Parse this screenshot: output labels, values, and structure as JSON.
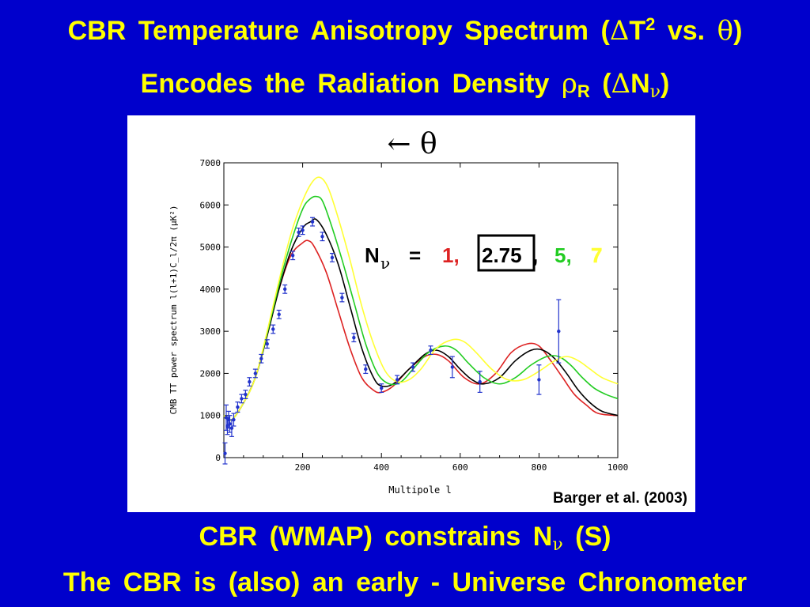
{
  "title": {
    "line1_prefix": "CBR  Temperature  Anisotropy  Spectrum  (",
    "line1_delta": "Δ",
    "line1_T": "T",
    "line1_sup": "2",
    "line1_vs": "  vs.  ",
    "line1_theta": "θ",
    "line1_close": ")",
    "line2_prefix": "Encodes  the  Radiation  Density  ",
    "line2_rho": "ρ",
    "line2_rsub": "R",
    "line2_open": "  (",
    "line2_delta": "Δ",
    "line2_N": "N",
    "line2_nu": "ν",
    "line2_close": ")"
  },
  "figure": {
    "arrow_label": "←  θ",
    "nnu_label": "N",
    "nnu_sub": "ν",
    "nnu_eq": "=",
    "nnu_values": [
      "1,",
      "2.75",
      ",",
      "5,",
      "7"
    ],
    "citation": "Barger et al. (2003)"
  },
  "bottom": {
    "line1_prefix": "CBR  (WMAP)  constrains  N",
    "line1_nu": "ν",
    "line1_suffix": " (S)",
    "line2": "The  CBR  is  (also)  an  early - Universe  Chronometer"
  },
  "colors": {
    "background": "#0000cc",
    "text": "#ffff00",
    "n1": "#dd2222",
    "n275": "#000000",
    "n5": "#22cc22",
    "n7": "#ffff33",
    "data": "#2233cc"
  },
  "chart_data": {
    "type": "line",
    "xlabel": "Multipole  l",
    "ylabel": "CMB  TT  power  spectrum    l(l+1)C_l/2π  (μK²)",
    "xlim": [
      0,
      1000
    ],
    "ylim": [
      0,
      7000
    ],
    "xticks": [
      200,
      400,
      600,
      800,
      1000
    ],
    "yticks": [
      0,
      1000,
      2000,
      3000,
      4000,
      5000,
      6000,
      7000
    ],
    "series": [
      {
        "name": "1",
        "color": "#dd2222",
        "x": [
          0,
          20,
          50,
          80,
          110,
          140,
          170,
          200,
          215,
          230,
          260,
          290,
          320,
          350,
          380,
          400,
          430,
          470,
          510,
          540,
          570,
          610,
          650,
          690,
          730,
          770,
          800,
          830,
          860,
          890,
          920,
          950,
          1000
        ],
        "y": [
          1000,
          900,
          1300,
          1900,
          2900,
          4000,
          4800,
          5100,
          5150,
          5000,
          4400,
          3500,
          2600,
          1900,
          1600,
          1550,
          1700,
          2100,
          2400,
          2450,
          2300,
          1900,
          1750,
          2000,
          2500,
          2700,
          2650,
          2300,
          1900,
          1500,
          1250,
          1050,
          1000
        ]
      },
      {
        "name": "2.75",
        "color": "#000000",
        "x": [
          0,
          20,
          50,
          80,
          110,
          140,
          170,
          200,
          220,
          235,
          260,
          290,
          320,
          350,
          380,
          400,
          430,
          470,
          510,
          540,
          570,
          600,
          630,
          660,
          700,
          740,
          780,
          810,
          840,
          870,
          900,
          930,
          960,
          1000
        ],
        "y": [
          1000,
          900,
          1300,
          1900,
          2900,
          4000,
          4900,
          5450,
          5600,
          5650,
          5300,
          4600,
          3600,
          2600,
          1900,
          1700,
          1750,
          2100,
          2450,
          2550,
          2400,
          2100,
          1850,
          1750,
          1900,
          2300,
          2550,
          2550,
          2350,
          2000,
          1600,
          1300,
          1100,
          1000
        ]
      },
      {
        "name": "5",
        "color": "#22cc22",
        "x": [
          0,
          20,
          50,
          80,
          110,
          140,
          170,
          200,
          220,
          235,
          250,
          270,
          300,
          330,
          360,
          390,
          420,
          450,
          480,
          520,
          560,
          590,
          620,
          660,
          700,
          740,
          780,
          820,
          850,
          880,
          910,
          940,
          970,
          1000
        ],
        "y": [
          1000,
          900,
          1300,
          1900,
          2950,
          4100,
          5100,
          5900,
          6150,
          6200,
          6100,
          5600,
          4700,
          3700,
          2700,
          2000,
          1750,
          1800,
          2100,
          2500,
          2650,
          2550,
          2250,
          1900,
          1750,
          1900,
          2200,
          2400,
          2400,
          2200,
          1900,
          1650,
          1500,
          1400
        ]
      },
      {
        "name": "7",
        "color": "#ffff33",
        "x": [
          0,
          20,
          50,
          80,
          110,
          140,
          170,
          200,
          225,
          245,
          265,
          290,
          320,
          350,
          380,
          410,
          440,
          470,
          500,
          540,
          580,
          610,
          640,
          680,
          720,
          760,
          800,
          840,
          870,
          900,
          930,
          960,
          1000
        ],
        "y": [
          1000,
          900,
          1300,
          1900,
          3000,
          4200,
          5300,
          6100,
          6550,
          6650,
          6400,
          5700,
          4700,
          3600,
          2700,
          2050,
          1800,
          1850,
          2100,
          2600,
          2800,
          2750,
          2500,
          2100,
          1850,
          1850,
          2050,
          2300,
          2400,
          2300,
          2100,
          1900,
          1750
        ]
      }
    ],
    "data_points": {
      "name": "WMAP",
      "color": "#2233cc",
      "x": [
        3,
        6,
        9,
        12,
        15,
        20,
        25,
        35,
        45,
        55,
        65,
        80,
        95,
        110,
        125,
        140,
        155,
        175,
        190,
        200,
        225,
        250,
        275,
        300,
        330,
        360,
        400,
        440,
        480,
        525,
        580,
        650,
        800,
        850
      ],
      "y": [
        100,
        950,
        750,
        900,
        800,
        700,
        900,
        1200,
        1400,
        1500,
        1800,
        2000,
        2350,
        2700,
        3050,
        3400,
        4000,
        4800,
        5350,
        5400,
        5600,
        5250,
        4750,
        3800,
        2850,
        2100,
        1650,
        1850,
        2150,
        2550,
        2150,
        1800,
        1850,
        3000
      ],
      "err": [
        250,
        300,
        200,
        200,
        200,
        200,
        150,
        120,
        100,
        100,
        100,
        100,
        100,
        100,
        100,
        100,
        100,
        100,
        100,
        100,
        100,
        100,
        100,
        100,
        100,
        100,
        100,
        100,
        100,
        100,
        250,
        250,
        350,
        750
      ]
    }
  }
}
